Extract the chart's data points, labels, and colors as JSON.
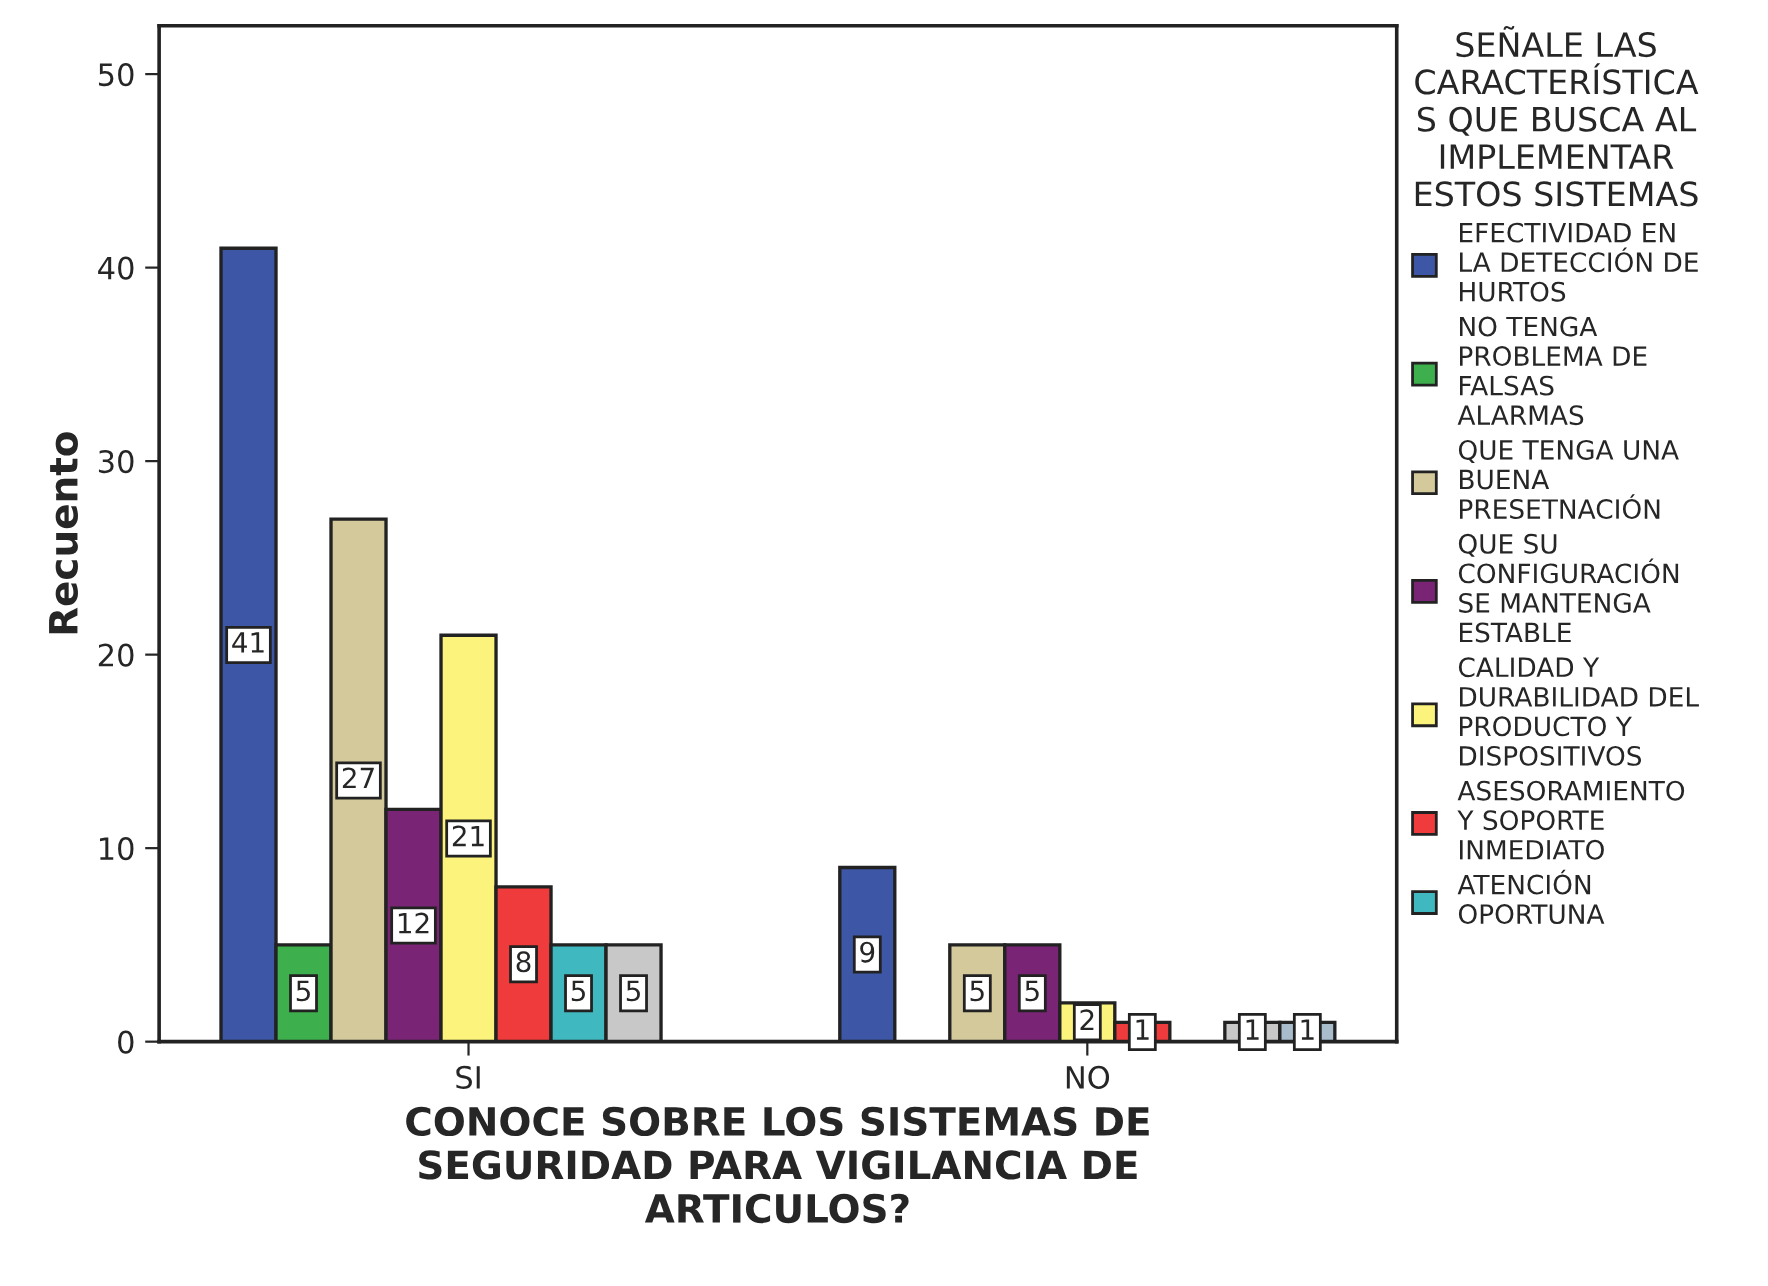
{
  "chart_data": {
    "type": "bar",
    "categories": [
      "SI",
      "NO"
    ],
    "xlabel": "CONOCE SOBRE LOS SISTEMAS DE\nSEGURIDAD PARA VIGILANCIA DE\nARTICULOS?",
    "ylabel": "Recuento",
    "legend_title": "SEÑALE LAS\nCARACTERÍSTICA\nS QUE BUSCA AL\nIMPLEMENTAR\nESTOS SISTEMAS",
    "ylim": [
      0,
      52.5
    ],
    "yticks": [
      0,
      10,
      20,
      30,
      40,
      50
    ],
    "grid": false,
    "legend": "right",
    "data_labels": true,
    "series": [
      {
        "name": "EFECTIVIDAD EN\nLA DETECCIÓN DE\nHURTOS",
        "color": "#3d56a6",
        "values": [
          41,
          9
        ]
      },
      {
        "name": "NO TENGA\nPROBLEMA DE\nFALSAS\nALARMAS",
        "color": "#3daf4c",
        "values": [
          5,
          null
        ]
      },
      {
        "name": "QUE TENGA UNA\nBUENA\nPRESETNACIÓN",
        "color": "#d3c99b",
        "values": [
          27,
          5
        ]
      },
      {
        "name": "QUE SU\nCONFIGURACIÓN\nSE MANTENGA\nESTABLE",
        "color": "#7a2476",
        "values": [
          12,
          5
        ]
      },
      {
        "name": "CALIDAD Y\nDURABILIDAD DEL\nPRODUCTO Y\nDISPOSITIVOS",
        "color": "#fbf37b",
        "values": [
          21,
          2
        ]
      },
      {
        "name": "ASESORAMIENTO\nY SOPORTE\nINMEDIATO",
        "color": "#ef3b3b",
        "values": [
          8,
          1
        ]
      },
      {
        "name": "ATENCIÓN\nOPORTUNA",
        "color": "#40b8bf",
        "values": [
          5,
          null
        ]
      },
      {
        "color": "#c8c8c8",
        "values": [
          5,
          1
        ]
      },
      {
        "color": "#a9bccb",
        "values": [
          null,
          1
        ]
      }
    ]
  }
}
